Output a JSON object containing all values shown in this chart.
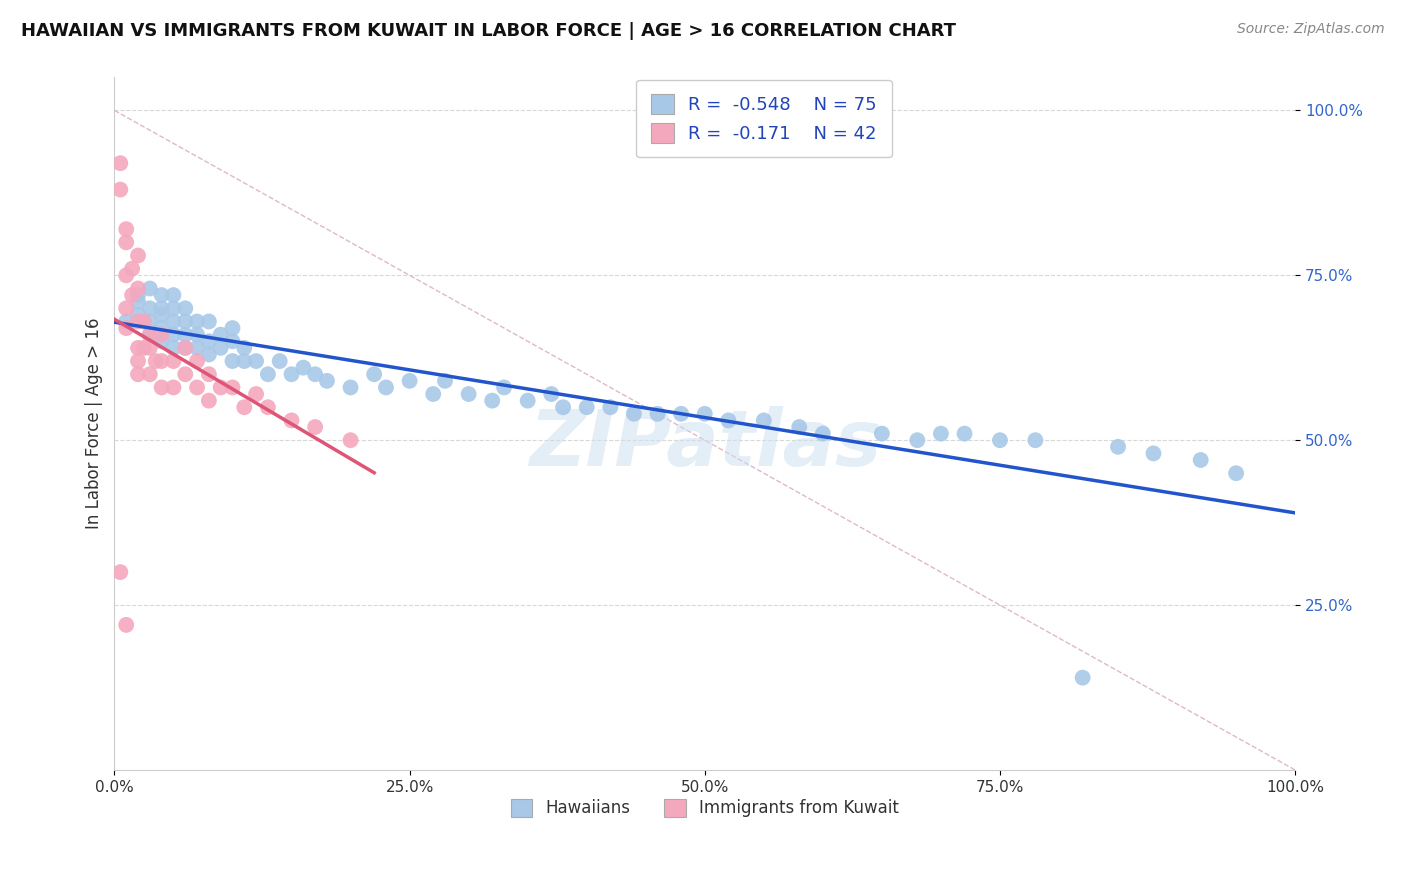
{
  "title": "HAWAIIAN VS IMMIGRANTS FROM KUWAIT IN LABOR FORCE | AGE > 16 CORRELATION CHART",
  "source": "Source: ZipAtlas.com",
  "ylabel": "In Labor Force | Age > 16",
  "x_tick_labels": [
    "0.0%",
    "25.0%",
    "50.0%",
    "75.0%",
    "100.0%"
  ],
  "x_tick_vals": [
    0.0,
    0.25,
    0.5,
    0.75,
    1.0
  ],
  "y_tick_labels": [
    "25.0%",
    "50.0%",
    "75.0%",
    "100.0%"
  ],
  "y_tick_vals": [
    0.25,
    0.5,
    0.75,
    1.0
  ],
  "hawaiian_color": "#a8c8e8",
  "kuwait_color": "#f4a8be",
  "trend_blue": "#2255cc",
  "trend_pink": "#dd5577",
  "diagonal_color": "#e0b8c8",
  "R_hawaiian": -0.548,
  "N_hawaiian": 75,
  "R_kuwait": -0.171,
  "N_kuwait": 42,
  "watermark": "ZIPatlas",
  "hawaiian_x": [
    0.01,
    0.02,
    0.02,
    0.02,
    0.03,
    0.03,
    0.03,
    0.03,
    0.04,
    0.04,
    0.04,
    0.04,
    0.04,
    0.05,
    0.05,
    0.05,
    0.05,
    0.05,
    0.06,
    0.06,
    0.06,
    0.06,
    0.07,
    0.07,
    0.07,
    0.08,
    0.08,
    0.08,
    0.09,
    0.09,
    0.1,
    0.1,
    0.1,
    0.11,
    0.11,
    0.12,
    0.13,
    0.14,
    0.15,
    0.16,
    0.17,
    0.18,
    0.2,
    0.22,
    0.23,
    0.25,
    0.27,
    0.28,
    0.3,
    0.32,
    0.33,
    0.35,
    0.37,
    0.38,
    0.4,
    0.42,
    0.44,
    0.46,
    0.48,
    0.5,
    0.52,
    0.55,
    0.58,
    0.6,
    0.65,
    0.68,
    0.7,
    0.72,
    0.75,
    0.78,
    0.82,
    0.85,
    0.88,
    0.92,
    0.95
  ],
  "hawaiian_y": [
    0.68,
    0.69,
    0.71,
    0.72,
    0.66,
    0.68,
    0.7,
    0.73,
    0.65,
    0.67,
    0.69,
    0.7,
    0.72,
    0.64,
    0.66,
    0.68,
    0.7,
    0.72,
    0.64,
    0.66,
    0.68,
    0.7,
    0.64,
    0.66,
    0.68,
    0.63,
    0.65,
    0.68,
    0.64,
    0.66,
    0.62,
    0.65,
    0.67,
    0.62,
    0.64,
    0.62,
    0.6,
    0.62,
    0.6,
    0.61,
    0.6,
    0.59,
    0.58,
    0.6,
    0.58,
    0.59,
    0.57,
    0.59,
    0.57,
    0.56,
    0.58,
    0.56,
    0.57,
    0.55,
    0.55,
    0.55,
    0.54,
    0.54,
    0.54,
    0.54,
    0.53,
    0.53,
    0.52,
    0.51,
    0.51,
    0.5,
    0.51,
    0.51,
    0.5,
    0.5,
    0.14,
    0.49,
    0.48,
    0.47,
    0.45
  ],
  "kuwait_x": [
    0.005,
    0.005,
    0.01,
    0.01,
    0.01,
    0.01,
    0.01,
    0.015,
    0.015,
    0.02,
    0.02,
    0.02,
    0.02,
    0.02,
    0.02,
    0.025,
    0.025,
    0.03,
    0.03,
    0.03,
    0.035,
    0.04,
    0.04,
    0.04,
    0.05,
    0.05,
    0.06,
    0.06,
    0.07,
    0.07,
    0.08,
    0.08,
    0.09,
    0.1,
    0.11,
    0.12,
    0.13,
    0.15,
    0.17,
    0.2,
    0.005,
    0.01
  ],
  "kuwait_y": [
    0.92,
    0.88,
    0.82,
    0.8,
    0.75,
    0.7,
    0.67,
    0.76,
    0.72,
    0.78,
    0.73,
    0.68,
    0.64,
    0.62,
    0.6,
    0.68,
    0.64,
    0.66,
    0.64,
    0.6,
    0.62,
    0.66,
    0.62,
    0.58,
    0.62,
    0.58,
    0.64,
    0.6,
    0.62,
    0.58,
    0.6,
    0.56,
    0.58,
    0.58,
    0.55,
    0.57,
    0.55,
    0.53,
    0.52,
    0.5,
    0.3,
    0.22
  ]
}
